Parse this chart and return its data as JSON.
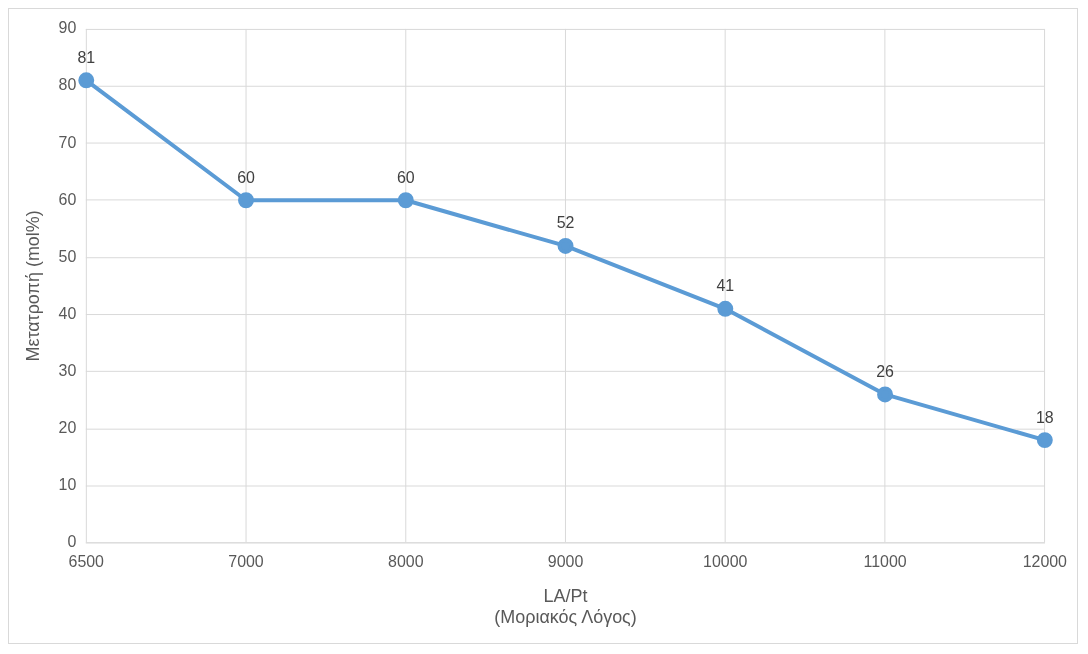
{
  "chart_data": {
    "type": "line",
    "xlabel": "LA/Pt\n(Μοριακός Λόγος)",
    "ylabel": "Μετατροπή (mol%)",
    "categories": [
      "6500",
      "7000",
      "8000",
      "9000",
      "10000",
      "11000",
      "12000"
    ],
    "series": [
      {
        "color": "#5b9bd5",
        "values": [
          81,
          60,
          60,
          52,
          41,
          26,
          18
        ]
      }
    ],
    "ylim": [
      0,
      90
    ],
    "yticks": [
      0,
      10,
      20,
      30,
      40,
      50,
      60,
      70,
      80,
      90
    ],
    "grid": true,
    "data_labels": true,
    "marker": "circle",
    "line_style": "solid",
    "legend": false
  }
}
